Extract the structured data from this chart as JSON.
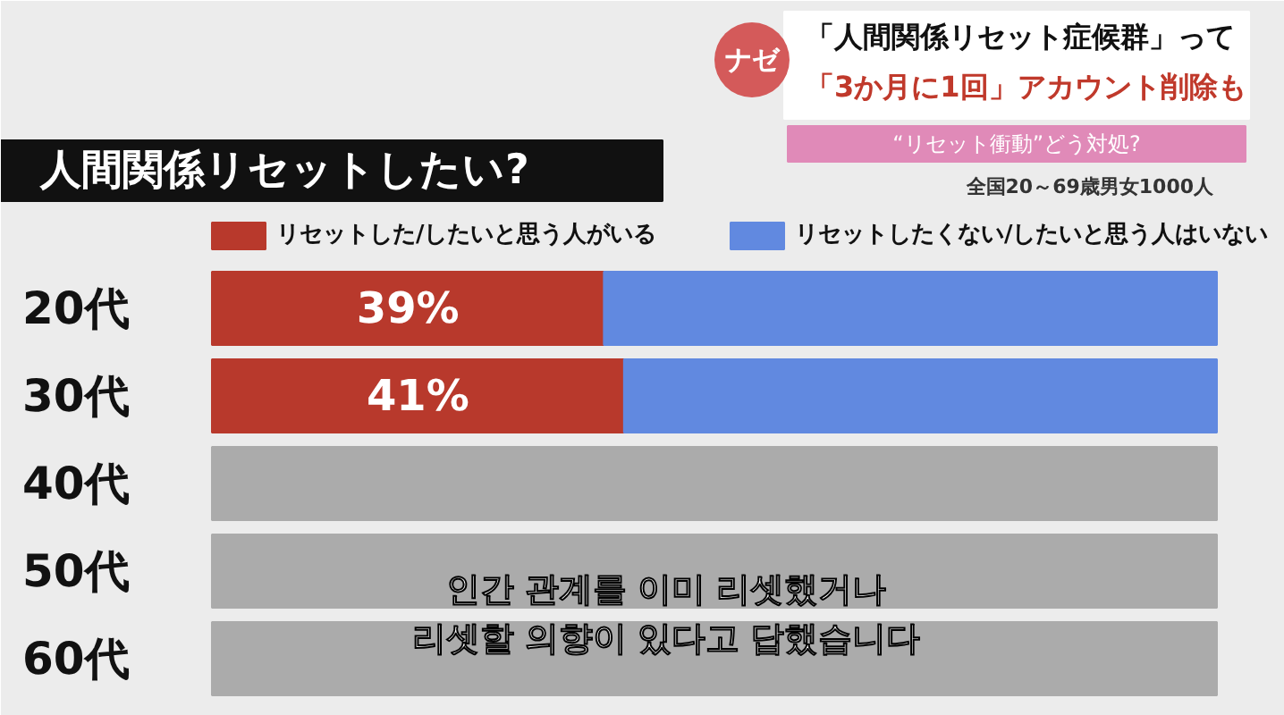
{
  "chart_data": {
    "type": "bar",
    "orientation": "horizontal",
    "stacked": true,
    "title": "人間関係リセットしたい?",
    "categories": [
      "20代",
      "30代",
      "40代",
      "50代",
      "60代"
    ],
    "series": [
      {
        "name": "リセットした/したいと思う人がいる",
        "color": "#b8392c",
        "values": [
          39,
          41,
          null,
          null,
          null
        ],
        "value_labels": [
          "39%",
          "41%",
          null,
          null,
          null
        ]
      },
      {
        "name": "リセットしたくない/したいと思う人はいない",
        "color": "#6189e0",
        "values": [
          61,
          59,
          null,
          null,
          null
        ]
      },
      {
        "color": "#ababab",
        "values": [
          null,
          null,
          100,
          100,
          100
        ]
      }
    ],
    "xlim": [
      0,
      100
    ],
    "grid": false,
    "legend": "top",
    "annotations": [
      "ナゼ",
      "「人間関係リセット症候群」って",
      "「3か月に1回」アカウント削除も",
      "“リセット衝動”どう対処?",
      "全国20～69歳男女1000人",
      "인간 관계를 이미 리셋했거나\n리셋할 의향이 있다고 답했습니다"
    ]
  }
}
